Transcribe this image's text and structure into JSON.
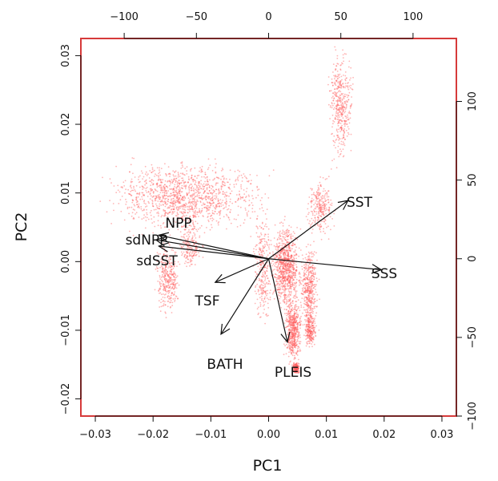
{
  "chart_data": {
    "type": "biplot",
    "xlabel": "PC1",
    "ylabel": "PC2",
    "grid": false,
    "xlim": [
      -0.0325,
      0.0325
    ],
    "ylim": [
      -0.0225,
      0.0325
    ],
    "x_ticks": [
      -0.03,
      -0.02,
      -0.01,
      0.0,
      0.01,
      0.02,
      0.03
    ],
    "x_tick_labels": [
      "−0.03",
      "−0.02",
      "−0.01",
      "0.00",
      "0.01",
      "0.02",
      "0.03"
    ],
    "y_ticks": [
      -0.02,
      -0.01,
      0.0,
      0.01,
      0.02,
      0.03
    ],
    "y_tick_labels": [
      "−0.02",
      "−0.01",
      "0.00",
      "0.01",
      "0.02",
      "0.03"
    ],
    "top_axis": {
      "lim": [
        -130,
        130
      ],
      "ticks": [
        -100,
        -50,
        0,
        50,
        100
      ],
      "tick_labels": [
        "−100",
        "−50",
        "0",
        "50",
        "100"
      ]
    },
    "right_axis": {
      "lim": [
        -100,
        140
      ],
      "ticks": [
        -100,
        -50,
        0,
        50,
        100
      ],
      "tick_labels": [
        "−100",
        "−50",
        "0",
        "50",
        "100"
      ]
    },
    "frame_color": "#d63a3a",
    "point_color": "#ff5a5a",
    "loadings": [
      {
        "name": "SST",
        "x": 55,
        "y": 37
      },
      {
        "name": "SSS",
        "x": 78,
        "y": -7
      },
      {
        "name": "NPP",
        "x": -76,
        "y": 15
      },
      {
        "name": "sdNPP",
        "x": -78,
        "y": 12
      },
      {
        "name": "sdSST",
        "x": -76,
        "y": 8
      },
      {
        "name": "TSF",
        "x": -37,
        "y": -15
      },
      {
        "name": "BATH",
        "x": -33,
        "y": -48
      },
      {
        "name": "PLEIS",
        "x": 13,
        "y": -53
      }
    ],
    "score_clusters": [
      {
        "x": [
          -0.031,
          0.002
        ],
        "y": [
          0.003,
          0.016
        ],
        "n": 1300
      },
      {
        "x": [
          -0.02,
          -0.015
        ],
        "y": [
          -0.009,
          0.004
        ],
        "n": 350
      },
      {
        "x": [
          -0.016,
          -0.011
        ],
        "y": [
          -0.003,
          0.008
        ],
        "n": 200
      },
      {
        "x": [
          -0.003,
          0.001
        ],
        "y": [
          -0.012,
          0.01
        ],
        "n": 280
      },
      {
        "x": [
          0.0,
          0.006
        ],
        "y": [
          -0.008,
          0.007
        ],
        "n": 900
      },
      {
        "x": [
          0.0025,
          0.006
        ],
        "y": [
          -0.016,
          -0.004
        ],
        "n": 550
      },
      {
        "x": [
          0.004,
          0.0055
        ],
        "y": [
          -0.0165,
          -0.0145
        ],
        "n": 180
      },
      {
        "x": [
          0.005,
          0.009
        ],
        "y": [
          -0.012,
          0.004
        ],
        "n": 450
      },
      {
        "x": [
          0.006,
          0.0085
        ],
        "y": [
          -0.013,
          -0.007
        ],
        "n": 220
      },
      {
        "x": [
          0.006,
          0.012
        ],
        "y": [
          0.003,
          0.013
        ],
        "n": 260
      },
      {
        "x": [
          0.01,
          0.015
        ],
        "y": [
          0.013,
          0.0325
        ],
        "n": 420
      }
    ]
  }
}
